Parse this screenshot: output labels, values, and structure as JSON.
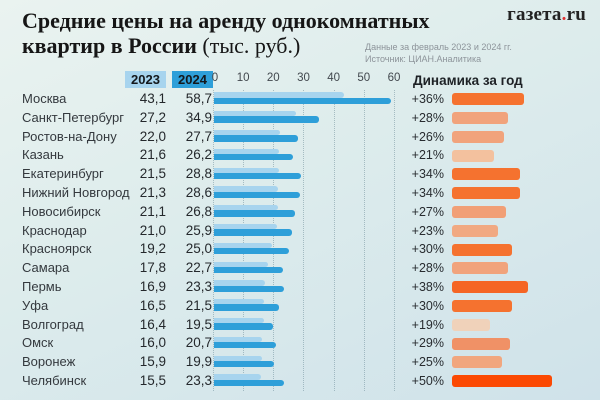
{
  "logo": {
    "main": "газета",
    "dot": ".",
    "tld": "ru"
  },
  "header": {
    "title_line1": "Средние цены на аренду однокомнатных",
    "title_line2_bold": "квартир в России",
    "title_line2_unit": " (тыс. руб.)",
    "note_line1": "Данные за февраль 2023 и 2024 гг.",
    "note_line2": "Источник: ЦИАН.Аналитика"
  },
  "columns": {
    "year1": "2023",
    "year2": "2024",
    "dynamics": "Динамика за год"
  },
  "axis": {
    "ticks": [
      "0",
      "10",
      "20",
      "30",
      "40",
      "50",
      "60"
    ]
  },
  "colors": {
    "bar_2023": "#a7d4ee",
    "bar_2024": "#2e9fd9",
    "logo_red": "#e03131",
    "dynamics_max": "#fb4903",
    "dynamics_min": "#f0d2ba"
  },
  "chart_data": {
    "type": "bar",
    "title": "Средние цены на аренду однокомнатных квартир в России (тыс. руб.)",
    "subtitle": "Данные за февраль 2023 и 2024 гг. Источник: ЦИАН.Аналитика",
    "orientation": "horizontal",
    "categories": [
      "Москва",
      "Санкт-Петербург",
      "Ростов-на-Дону",
      "Казань",
      "Екатеринбург",
      "Нижний Новгород",
      "Новосибирск",
      "Краснодар",
      "Красноярск",
      "Самара",
      "Пермь",
      "Уфа",
      "Волгоград",
      "Омск",
      "Воронеж",
      "Челябинск"
    ],
    "series": [
      {
        "name": "2023",
        "values": [
          43.1,
          27.2,
          22.0,
          21.6,
          21.5,
          21.3,
          21.1,
          21.0,
          19.2,
          17.8,
          16.9,
          16.5,
          16.4,
          16.0,
          15.9,
          15.5
        ]
      },
      {
        "name": "2024",
        "values": [
          58.7,
          34.9,
          27.7,
          26.2,
          28.8,
          28.6,
          26.8,
          25.9,
          25.0,
          22.7,
          23.3,
          21.5,
          19.5,
          20.7,
          19.9,
          23.3
        ]
      }
    ],
    "dynamics_pct": [
      36,
      28,
      26,
      21,
      34,
      34,
      27,
      23,
      30,
      28,
      38,
      30,
      19,
      29,
      25,
      50
    ],
    "xlim": [
      0,
      60
    ],
    "grid": "dotted-vertical",
    "legend_position": "top-left-chips"
  },
  "rows": [
    {
      "city": "Москва",
      "y2023": "43,1",
      "y2024": "58,7",
      "y2023_num": 43.1,
      "y2024_num": 58.7,
      "pct_label": "+36%",
      "pct": 36,
      "color": "#f5722f"
    },
    {
      "city": "Санкт-Петербург",
      "y2023": "27,2",
      "y2024": "34,9",
      "y2023_num": 27.2,
      "y2024_num": 34.9,
      "pct_label": "+28%",
      "pct": 28,
      "color": "#f1a37c"
    },
    {
      "city": "Ростов-на-Дону",
      "y2023": "22,0",
      "y2024": "27,7",
      "y2023_num": 22.0,
      "y2024_num": 27.7,
      "pct_label": "+26%",
      "pct": 26,
      "color": "#f1a37c"
    },
    {
      "city": "Казань",
      "y2023": "21,6",
      "y2024": "26,2",
      "y2023_num": 21.6,
      "y2024_num": 26.2,
      "pct_label": "+21%",
      "pct": 21,
      "color": "#f3c19e"
    },
    {
      "city": "Екатеринбург",
      "y2023": "21,5",
      "y2024": "28,8",
      "y2023_num": 21.5,
      "y2024_num": 28.8,
      "pct_label": "+34%",
      "pct": 34,
      "color": "#f5722f"
    },
    {
      "city": "Нижний Новгород",
      "y2023": "21,3",
      "y2024": "28,6",
      "y2023_num": 21.3,
      "y2024_num": 28.6,
      "pct_label": "+34%",
      "pct": 34,
      "color": "#f5722f"
    },
    {
      "city": "Новосибирск",
      "y2023": "21,1",
      "y2024": "26,8",
      "y2023_num": 21.1,
      "y2024_num": 26.8,
      "pct_label": "+27%",
      "pct": 27,
      "color": "#f19f76"
    },
    {
      "city": "Краснодар",
      "y2023": "21,0",
      "y2024": "25,9",
      "y2023_num": 21.0,
      "y2024_num": 25.9,
      "pct_label": "+23%",
      "pct": 23,
      "color": "#f1a982"
    },
    {
      "city": "Красноярск",
      "y2023": "19,2",
      "y2024": "25,0",
      "y2023_num": 19.2,
      "y2024_num": 25.0,
      "pct_label": "+30%",
      "pct": 30,
      "color": "#f5722f"
    },
    {
      "city": "Самара",
      "y2023": "17,8",
      "y2024": "22,7",
      "y2023_num": 17.8,
      "y2024_num": 22.7,
      "pct_label": "+28%",
      "pct": 28,
      "color": "#f1a37c"
    },
    {
      "city": "Пермь",
      "y2023": "16,9",
      "y2024": "23,3",
      "y2023_num": 16.9,
      "y2024_num": 23.3,
      "pct_label": "+38%",
      "pct": 38,
      "color": "#f56524"
    },
    {
      "city": "Уфа",
      "y2023": "16,5",
      "y2024": "21,5",
      "y2023_num": 16.5,
      "y2024_num": 21.5,
      "pct_label": "+30%",
      "pct": 30,
      "color": "#f5722f"
    },
    {
      "city": "Волгоград",
      "y2023": "16,4",
      "y2024": "19,5",
      "y2023_num": 16.4,
      "y2024_num": 19.5,
      "pct_label": "+19%",
      "pct": 19,
      "color": "#f0d2ba"
    },
    {
      "city": "Омск",
      "y2023": "16,0",
      "y2024": "20,7",
      "y2023_num": 16.0,
      "y2024_num": 20.7,
      "pct_label": "+29%",
      "pct": 29,
      "color": "#f09166"
    },
    {
      "city": "Воронеж",
      "y2023": "15,9",
      "y2024": "19,9",
      "y2023_num": 15.9,
      "y2024_num": 19.9,
      "pct_label": "+25%",
      "pct": 25,
      "color": "#f1a67e"
    },
    {
      "city": "Челябинск",
      "y2023": "15,5",
      "y2024": "23,3",
      "y2023_num": 15.5,
      "y2024_num": 23.3,
      "pct_label": "+50%",
      "pct": 50,
      "color": "#fb4903"
    }
  ]
}
